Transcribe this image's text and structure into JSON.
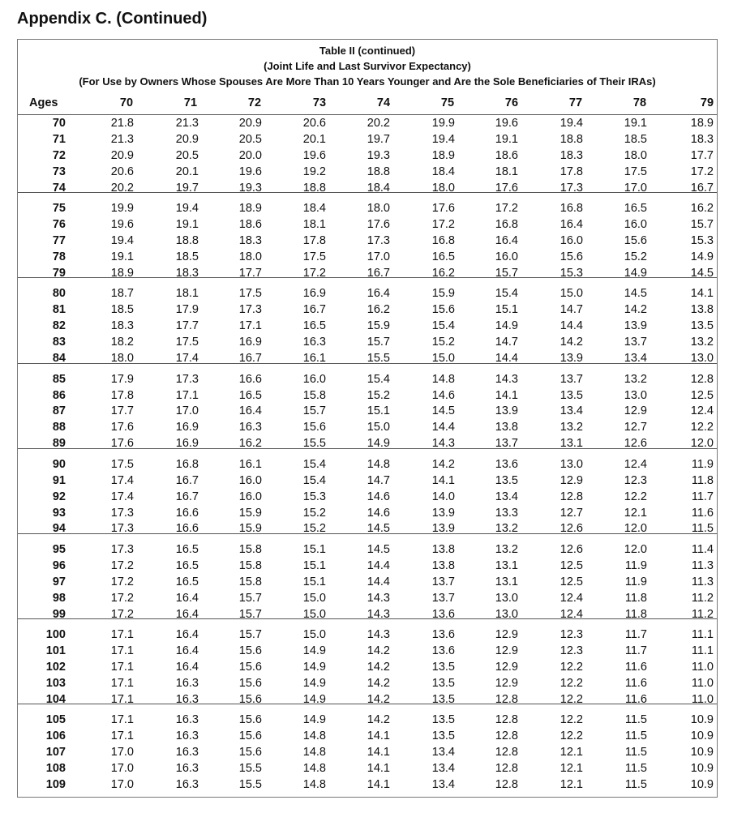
{
  "page_title": "Appendix C. (Continued)",
  "table": {
    "caption": [
      "Table II (continued)",
      "(Joint Life and Last Survivor Expectancy)",
      "(For Use by Owners Whose Spouses Are More Than 10 Years Younger and Are the Sole Beneficiaries of Their IRAs)"
    ],
    "header": [
      "Ages",
      "70",
      "71",
      "72",
      "73",
      "74",
      "75",
      "76",
      "77",
      "78",
      "79"
    ],
    "rows": [
      [
        "70",
        "21.8",
        "21.3",
        "20.9",
        "20.6",
        "20.2",
        "19.9",
        "19.6",
        "19.4",
        "19.1",
        "18.9"
      ],
      [
        "71",
        "21.3",
        "20.9",
        "20.5",
        "20.1",
        "19.7",
        "19.4",
        "19.1",
        "18.8",
        "18.5",
        "18.3"
      ],
      [
        "72",
        "20.9",
        "20.5",
        "20.0",
        "19.6",
        "19.3",
        "18.9",
        "18.6",
        "18.3",
        "18.0",
        "17.7"
      ],
      [
        "73",
        "20.6",
        "20.1",
        "19.6",
        "19.2",
        "18.8",
        "18.4",
        "18.1",
        "17.8",
        "17.5",
        "17.2"
      ],
      [
        "74",
        "20.2",
        "19.7",
        "19.3",
        "18.8",
        "18.4",
        "18.0",
        "17.6",
        "17.3",
        "17.0",
        "16.7"
      ],
      [
        "75",
        "19.9",
        "19.4",
        "18.9",
        "18.4",
        "18.0",
        "17.6",
        "17.2",
        "16.8",
        "16.5",
        "16.2"
      ],
      [
        "76",
        "19.6",
        "19.1",
        "18.6",
        "18.1",
        "17.6",
        "17.2",
        "16.8",
        "16.4",
        "16.0",
        "15.7"
      ],
      [
        "77",
        "19.4",
        "18.8",
        "18.3",
        "17.8",
        "17.3",
        "16.8",
        "16.4",
        "16.0",
        "15.6",
        "15.3"
      ],
      [
        "78",
        "19.1",
        "18.5",
        "18.0",
        "17.5",
        "17.0",
        "16.5",
        "16.0",
        "15.6",
        "15.2",
        "14.9"
      ],
      [
        "79",
        "18.9",
        "18.3",
        "17.7",
        "17.2",
        "16.7",
        "16.2",
        "15.7",
        "15.3",
        "14.9",
        "14.5"
      ],
      [
        "80",
        "18.7",
        "18.1",
        "17.5",
        "16.9",
        "16.4",
        "15.9",
        "15.4",
        "15.0",
        "14.5",
        "14.1"
      ],
      [
        "81",
        "18.5",
        "17.9",
        "17.3",
        "16.7",
        "16.2",
        "15.6",
        "15.1",
        "14.7",
        "14.2",
        "13.8"
      ],
      [
        "82",
        "18.3",
        "17.7",
        "17.1",
        "16.5",
        "15.9",
        "15.4",
        "14.9",
        "14.4",
        "13.9",
        "13.5"
      ],
      [
        "83",
        "18.2",
        "17.5",
        "16.9",
        "16.3",
        "15.7",
        "15.2",
        "14.7",
        "14.2",
        "13.7",
        "13.2"
      ],
      [
        "84",
        "18.0",
        "17.4",
        "16.7",
        "16.1",
        "15.5",
        "15.0",
        "14.4",
        "13.9",
        "13.4",
        "13.0"
      ],
      [
        "85",
        "17.9",
        "17.3",
        "16.6",
        "16.0",
        "15.4",
        "14.8",
        "14.3",
        "13.7",
        "13.2",
        "12.8"
      ],
      [
        "86",
        "17.8",
        "17.1",
        "16.5",
        "15.8",
        "15.2",
        "14.6",
        "14.1",
        "13.5",
        "13.0",
        "12.5"
      ],
      [
        "87",
        "17.7",
        "17.0",
        "16.4",
        "15.7",
        "15.1",
        "14.5",
        "13.9",
        "13.4",
        "12.9",
        "12.4"
      ],
      [
        "88",
        "17.6",
        "16.9",
        "16.3",
        "15.6",
        "15.0",
        "14.4",
        "13.8",
        "13.2",
        "12.7",
        "12.2"
      ],
      [
        "89",
        "17.6",
        "16.9",
        "16.2",
        "15.5",
        "14.9",
        "14.3",
        "13.7",
        "13.1",
        "12.6",
        "12.0"
      ],
      [
        "90",
        "17.5",
        "16.8",
        "16.1",
        "15.4",
        "14.8",
        "14.2",
        "13.6",
        "13.0",
        "12.4",
        "11.9"
      ],
      [
        "91",
        "17.4",
        "16.7",
        "16.0",
        "15.4",
        "14.7",
        "14.1",
        "13.5",
        "12.9",
        "12.3",
        "11.8"
      ],
      [
        "92",
        "17.4",
        "16.7",
        "16.0",
        "15.3",
        "14.6",
        "14.0",
        "13.4",
        "12.8",
        "12.2",
        "11.7"
      ],
      [
        "93",
        "17.3",
        "16.6",
        "15.9",
        "15.2",
        "14.6",
        "13.9",
        "13.3",
        "12.7",
        "12.1",
        "11.6"
      ],
      [
        "94",
        "17.3",
        "16.6",
        "15.9",
        "15.2",
        "14.5",
        "13.9",
        "13.2",
        "12.6",
        "12.0",
        "11.5"
      ],
      [
        "95",
        "17.3",
        "16.5",
        "15.8",
        "15.1",
        "14.5",
        "13.8",
        "13.2",
        "12.6",
        "12.0",
        "11.4"
      ],
      [
        "96",
        "17.2",
        "16.5",
        "15.8",
        "15.1",
        "14.4",
        "13.8",
        "13.1",
        "12.5",
        "11.9",
        "11.3"
      ],
      [
        "97",
        "17.2",
        "16.5",
        "15.8",
        "15.1",
        "14.4",
        "13.7",
        "13.1",
        "12.5",
        "11.9",
        "11.3"
      ],
      [
        "98",
        "17.2",
        "16.4",
        "15.7",
        "15.0",
        "14.3",
        "13.7",
        "13.0",
        "12.4",
        "11.8",
        "11.2"
      ],
      [
        "99",
        "17.2",
        "16.4",
        "15.7",
        "15.0",
        "14.3",
        "13.6",
        "13.0",
        "12.4",
        "11.8",
        "11.2"
      ],
      [
        "100",
        "17.1",
        "16.4",
        "15.7",
        "15.0",
        "14.3",
        "13.6",
        "12.9",
        "12.3",
        "11.7",
        "11.1"
      ],
      [
        "101",
        "17.1",
        "16.4",
        "15.6",
        "14.9",
        "14.2",
        "13.6",
        "12.9",
        "12.3",
        "11.7",
        "11.1"
      ],
      [
        "102",
        "17.1",
        "16.4",
        "15.6",
        "14.9",
        "14.2",
        "13.5",
        "12.9",
        "12.2",
        "11.6",
        "11.0"
      ],
      [
        "103",
        "17.1",
        "16.3",
        "15.6",
        "14.9",
        "14.2",
        "13.5",
        "12.9",
        "12.2",
        "11.6",
        "11.0"
      ],
      [
        "104",
        "17.1",
        "16.3",
        "15.6",
        "14.9",
        "14.2",
        "13.5",
        "12.8",
        "12.2",
        "11.6",
        "11.0"
      ],
      [
        "105",
        "17.1",
        "16.3",
        "15.6",
        "14.9",
        "14.2",
        "13.5",
        "12.8",
        "12.2",
        "11.5",
        "10.9"
      ],
      [
        "106",
        "17.1",
        "16.3",
        "15.6",
        "14.8",
        "14.1",
        "13.5",
        "12.8",
        "12.2",
        "11.5",
        "10.9"
      ],
      [
        "107",
        "17.0",
        "16.3",
        "15.6",
        "14.8",
        "14.1",
        "13.4",
        "12.8",
        "12.1",
        "11.5",
        "10.9"
      ],
      [
        "108",
        "17.0",
        "16.3",
        "15.5",
        "14.8",
        "14.1",
        "13.4",
        "12.8",
        "12.1",
        "11.5",
        "10.9"
      ],
      [
        "109",
        "17.0",
        "16.3",
        "15.5",
        "14.8",
        "14.1",
        "13.4",
        "12.8",
        "12.1",
        "11.5",
        "10.9"
      ]
    ]
  }
}
